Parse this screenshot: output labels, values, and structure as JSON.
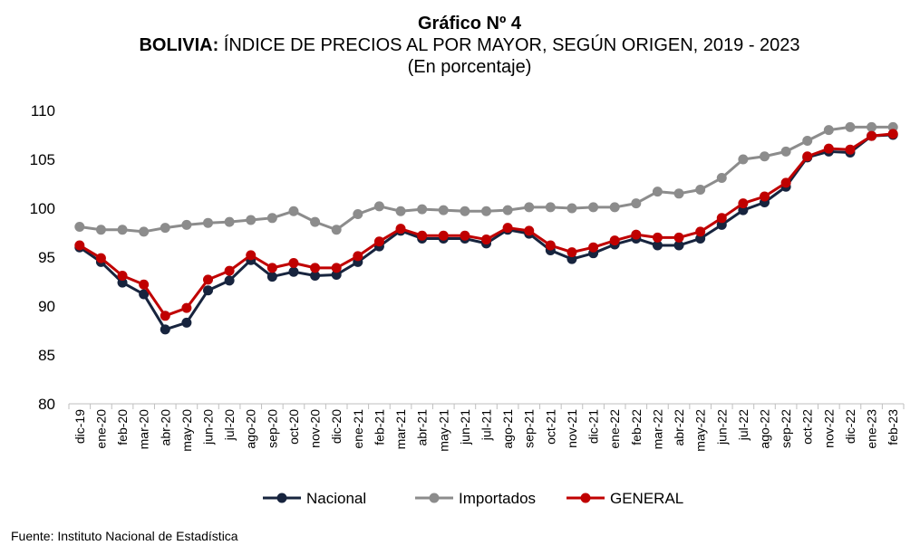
{
  "header": {
    "title": "Gráfico Nº 4",
    "subtitle_bold": "BOLIVIA:",
    "subtitle_rest": " ÍNDICE DE PRECIOS AL POR MAYOR, SEGÚN ORIGEN, 2019 - 2023",
    "unit": "(En porcentaje)"
  },
  "footer": {
    "source": "Fuente: Instituto Nacional de Estadística"
  },
  "chart_data": {
    "type": "line",
    "categories": [
      "dic-19",
      "ene-20",
      "feb-20",
      "mar-20",
      "abr-20",
      "may-20",
      "jun-20",
      "jul-20",
      "ago-20",
      "sep-20",
      "oct-20",
      "nov-20",
      "dic-20",
      "ene-21",
      "feb-21",
      "mar-21",
      "abr-21",
      "may-21",
      "jun-21",
      "jul-21",
      "ago-21",
      "sep-21",
      "oct-21",
      "nov-21",
      "dic-21",
      "ene-22",
      "feb-22",
      "mar-22",
      "abr-22",
      "may-22",
      "jun-22",
      "jul-22",
      "ago-22",
      "sep-22",
      "oct-22",
      "nov-22",
      "dic-22",
      "ene-23",
      "feb-23"
    ],
    "ylim": [
      80,
      110
    ],
    "yticks": [
      80,
      85,
      90,
      95,
      100,
      105,
      110
    ],
    "grid": false,
    "legend_position": "bottom",
    "series": [
      {
        "name": "Nacional",
        "color": "#17243e",
        "values": [
          96.0,
          94.5,
          92.4,
          91.2,
          87.6,
          88.3,
          91.6,
          92.6,
          94.7,
          93.0,
          93.5,
          93.1,
          93.2,
          94.5,
          96.1,
          97.7,
          96.9,
          96.9,
          96.9,
          96.4,
          97.8,
          97.4,
          95.7,
          94.8,
          95.4,
          96.3,
          96.9,
          96.2,
          96.2,
          96.9,
          98.3,
          99.8,
          100.6,
          102.2,
          105.2,
          105.8,
          105.7,
          107.4,
          107.5
        ]
      },
      {
        "name": "Importados",
        "color": "#8c8c8c",
        "values": [
          98.1,
          97.8,
          97.8,
          97.6,
          98.0,
          98.3,
          98.5,
          98.6,
          98.8,
          99.0,
          99.7,
          98.6,
          97.8,
          99.4,
          100.2,
          99.7,
          99.9,
          99.8,
          99.7,
          99.7,
          99.8,
          100.1,
          100.1,
          100.0,
          100.1,
          100.1,
          100.5,
          101.7,
          101.5,
          101.9,
          103.1,
          105.0,
          105.3,
          105.8,
          106.9,
          108.0,
          108.3,
          108.3,
          108.3
        ]
      },
      {
        "name": "GENERAL",
        "color": "#c00000",
        "values": [
          96.2,
          94.9,
          93.1,
          92.2,
          89.0,
          89.8,
          92.7,
          93.6,
          95.2,
          93.9,
          94.4,
          93.9,
          93.9,
          95.1,
          96.6,
          97.9,
          97.2,
          97.2,
          97.2,
          96.8,
          98.0,
          97.7,
          96.2,
          95.5,
          96.0,
          96.7,
          97.3,
          97.0,
          97.0,
          97.6,
          99.0,
          100.5,
          101.2,
          102.6,
          105.3,
          106.1,
          106.0,
          107.4,
          107.6
        ]
      }
    ]
  }
}
